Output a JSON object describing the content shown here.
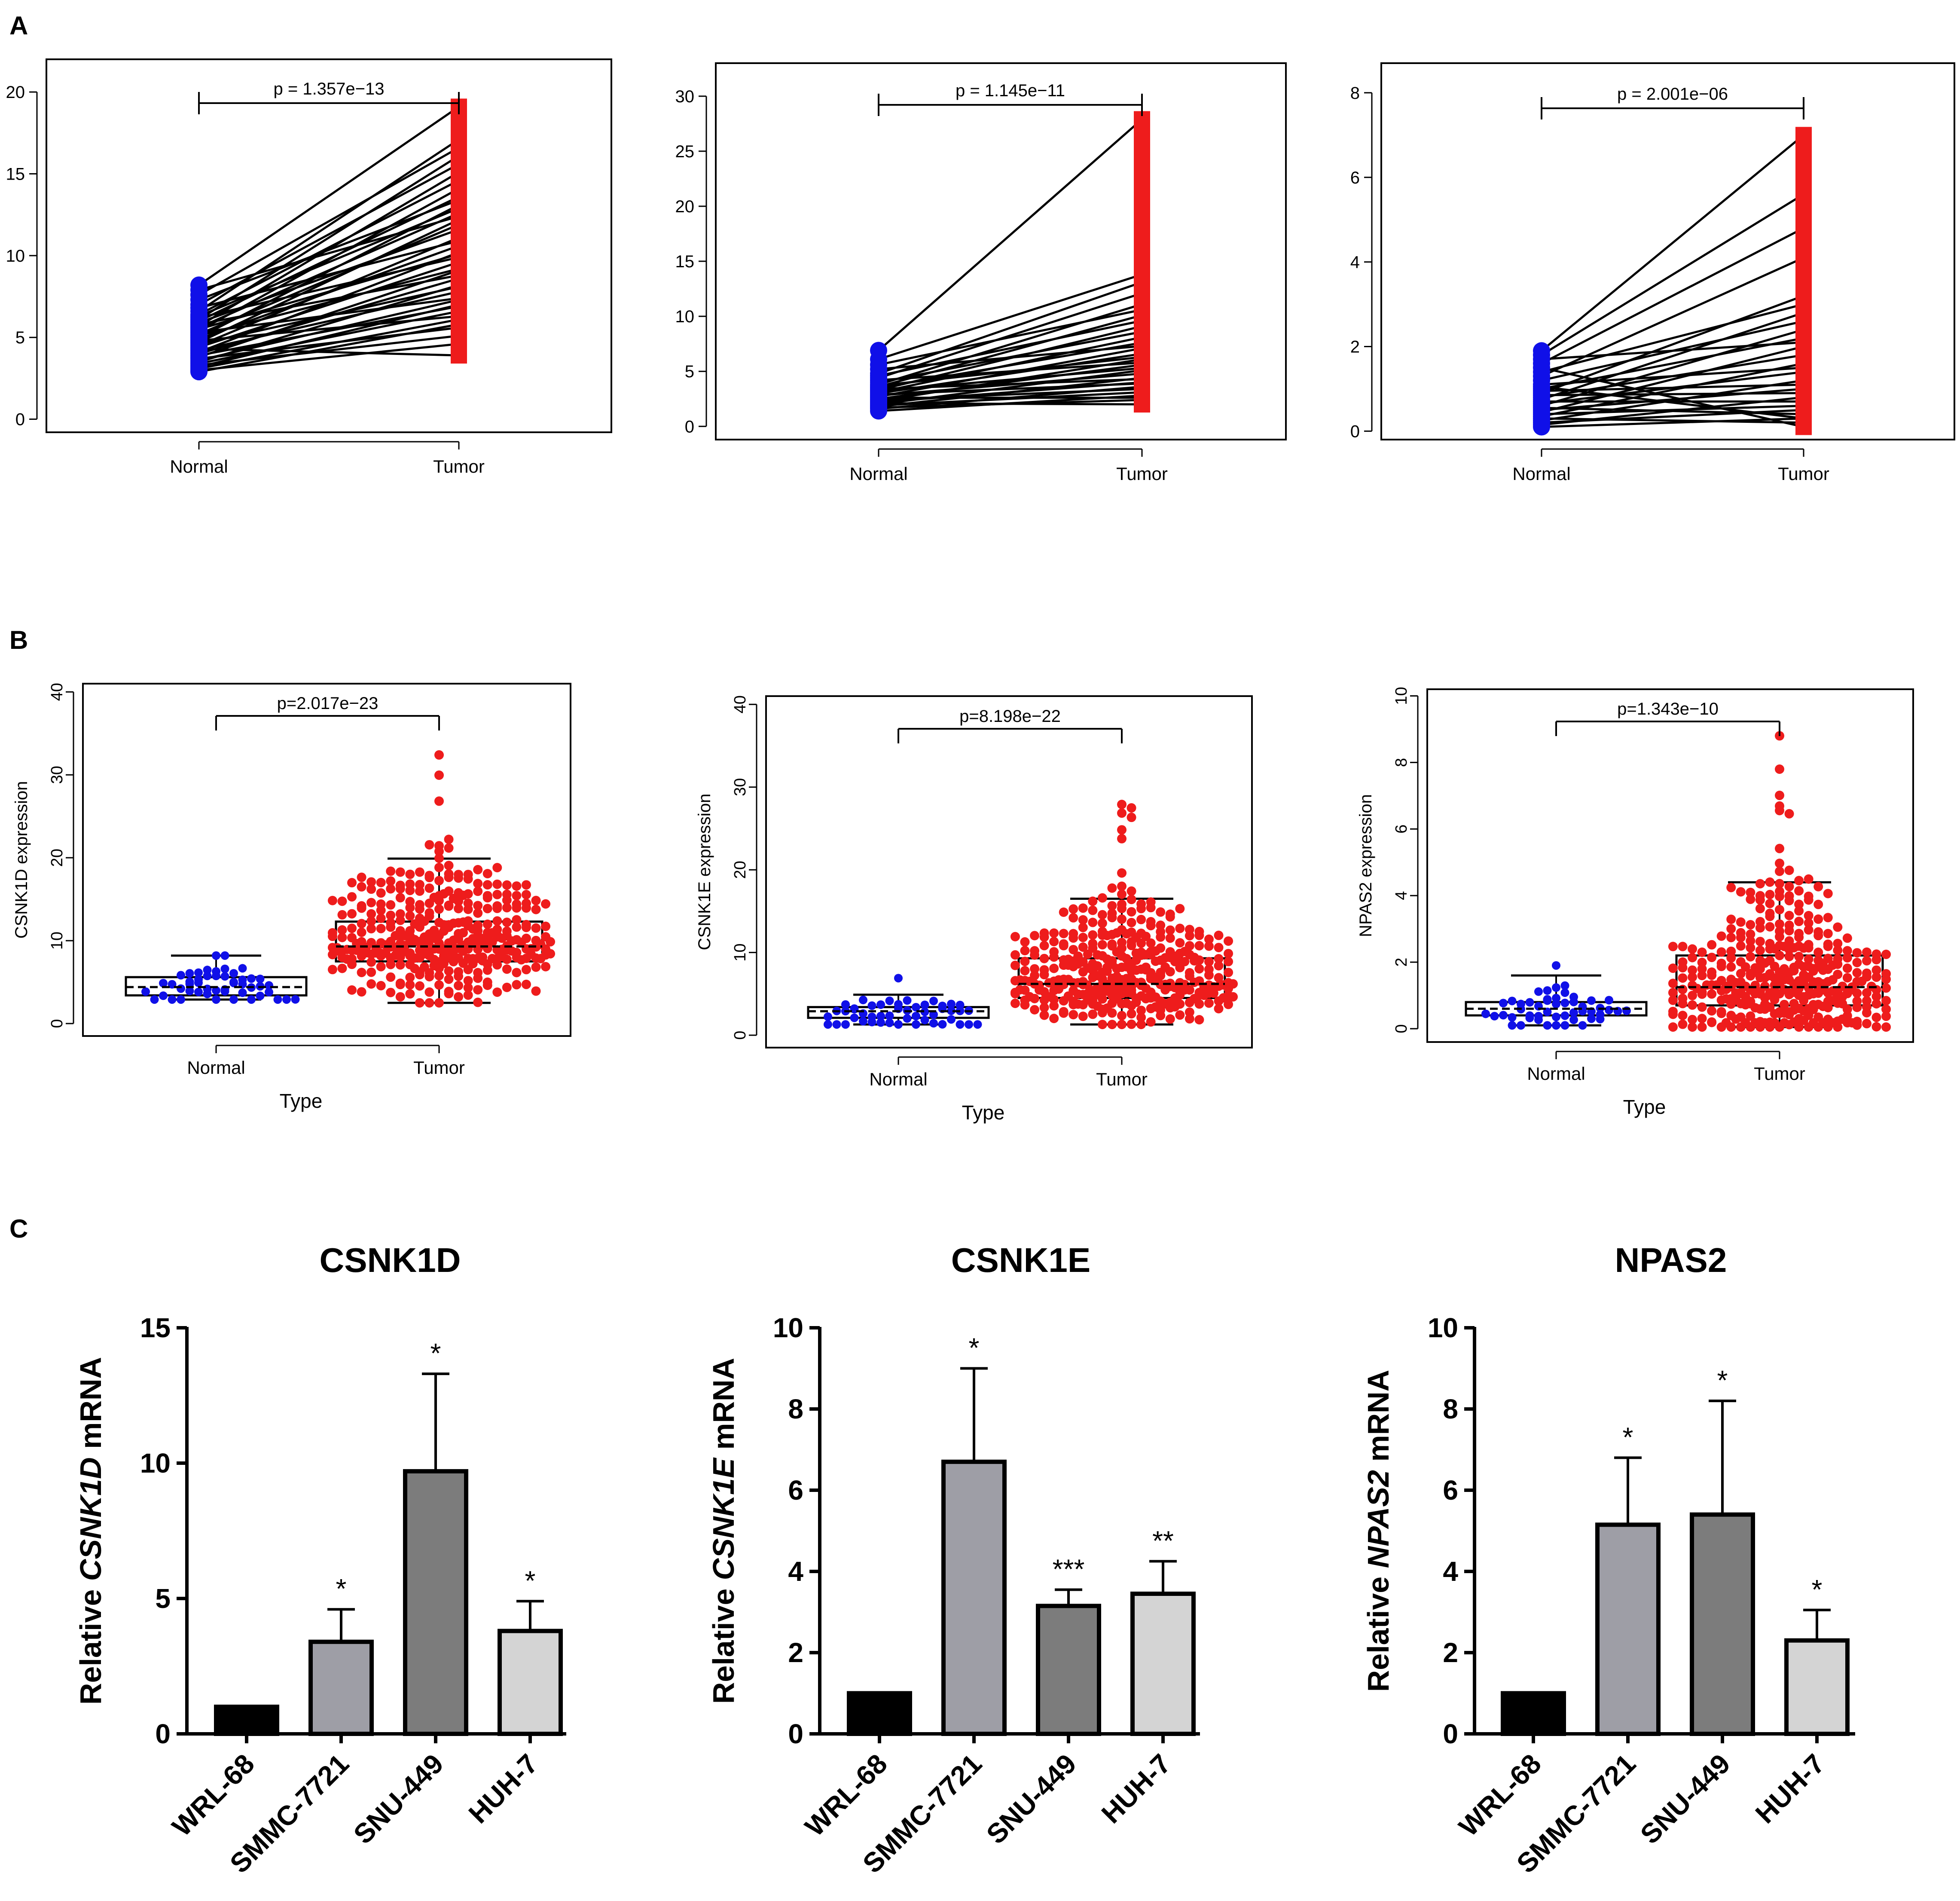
{
  "panels": {
    "A": "A",
    "B": "B",
    "C": "C"
  },
  "colors": {
    "normal": "#1010e8",
    "tumor": "#ee1c1c",
    "line": "#000000",
    "bar_black": "#000000",
    "bar_light_gray": "#9e9ea6",
    "bar_dark_gray": "#7c7c7c",
    "bar_pale_gray": "#d4d4d4"
  },
  "chart_data": [
    {
      "panel": "A",
      "type": "line",
      "subtype": "paired",
      "categories": [
        "Normal",
        "Tumor"
      ],
      "p_label": "p = 1.357e−13",
      "ylim": [
        -0.8,
        22
      ],
      "yticks": [
        0,
        5,
        10,
        15,
        20
      ],
      "ytick_labels": [
        "0",
        "5",
        "10",
        "15",
        "20"
      ],
      "normal_range": [
        2.9,
        8.2
      ],
      "tumor_range": [
        3.9,
        19.1
      ],
      "pairs": [
        [
          2.9,
          5.8
        ],
        [
          3.0,
          4.6
        ],
        [
          3.1,
          6.1
        ],
        [
          3.2,
          7.0
        ],
        [
          3.3,
          5.1
        ],
        [
          3.4,
          6.6
        ],
        [
          3.5,
          8.2
        ],
        [
          3.6,
          7.3
        ],
        [
          3.7,
          5.6
        ],
        [
          3.8,
          9.1
        ],
        [
          3.9,
          6.9
        ],
        [
          4.0,
          8.6
        ],
        [
          4.1,
          10.2
        ],
        [
          4.2,
          7.8
        ],
        [
          4.3,
          3.9
        ],
        [
          4.4,
          9.6
        ],
        [
          4.5,
          11.1
        ],
        [
          4.6,
          8.1
        ],
        [
          4.7,
          12.2
        ],
        [
          4.8,
          6.3
        ],
        [
          4.9,
          10.6
        ],
        [
          5.0,
          13.1
        ],
        [
          5.1,
          9.2
        ],
        [
          5.2,
          11.9
        ],
        [
          5.3,
          7.4
        ],
        [
          5.4,
          14.1
        ],
        [
          5.5,
          10.1
        ],
        [
          5.6,
          12.6
        ],
        [
          5.7,
          15.1
        ],
        [
          5.8,
          8.8
        ],
        [
          5.9,
          11.6
        ],
        [
          6.0,
          13.6
        ],
        [
          6.1,
          16.1
        ],
        [
          6.2,
          9.9
        ],
        [
          6.3,
          12.9
        ],
        [
          6.4,
          14.6
        ],
        [
          6.6,
          17.1
        ],
        [
          6.8,
          10.9
        ],
        [
          7.0,
          15.6
        ],
        [
          7.3,
          13.4
        ],
        [
          7.6,
          16.6
        ],
        [
          7.9,
          12.4
        ],
        [
          8.2,
          19.1
        ]
      ]
    },
    {
      "panel": "A",
      "type": "line",
      "subtype": "paired",
      "categories": [
        "Normal",
        "Tumor"
      ],
      "p_label": "p = 1.145e−11",
      "ylim": [
        -1.2,
        33
      ],
      "yticks": [
        0,
        5,
        10,
        15,
        20,
        25,
        30
      ],
      "ytick_labels": [
        "0",
        "5",
        "10",
        "15",
        "20",
        "25",
        "30"
      ],
      "normal_range": [
        1.4,
        6.9
      ],
      "tumor_range": [
        2.0,
        27.9
      ],
      "pairs": [
        [
          1.4,
          2.8
        ],
        [
          1.6,
          3.6
        ],
        [
          1.7,
          2.4
        ],
        [
          1.8,
          4.4
        ],
        [
          1.9,
          3.1
        ],
        [
          2.0,
          5.1
        ],
        [
          2.1,
          2.0
        ],
        [
          2.2,
          4.0
        ],
        [
          2.3,
          6.1
        ],
        [
          2.4,
          3.4
        ],
        [
          2.5,
          5.6
        ],
        [
          2.6,
          2.6
        ],
        [
          2.7,
          7.1
        ],
        [
          2.8,
          4.8
        ],
        [
          2.9,
          3.9
        ],
        [
          3.0,
          6.6
        ],
        [
          3.1,
          8.1
        ],
        [
          3.2,
          5.3
        ],
        [
          3.3,
          9.1
        ],
        [
          3.4,
          4.3
        ],
        [
          3.5,
          7.6
        ],
        [
          3.6,
          10.1
        ],
        [
          3.7,
          6.3
        ],
        [
          3.8,
          11.1
        ],
        [
          4.0,
          8.6
        ],
        [
          4.2,
          5.8
        ],
        [
          4.4,
          12.1
        ],
        [
          4.6,
          9.6
        ],
        [
          4.8,
          13.1
        ],
        [
          5.2,
          7.3
        ],
        [
          5.6,
          10.6
        ],
        [
          6.1,
          13.8
        ],
        [
          6.9,
          27.9
        ]
      ]
    },
    {
      "panel": "A",
      "type": "line",
      "subtype": "paired",
      "categories": [
        "Normal",
        "Tumor"
      ],
      "p_label": "p = 2.001e−06",
      "ylim": [
        -0.2,
        8.7
      ],
      "yticks": [
        0,
        2,
        4,
        6,
        8
      ],
      "ytick_labels": [
        "0",
        "2",
        "4",
        "6",
        "8"
      ],
      "normal_range": [
        0.1,
        1.9
      ],
      "tumor_range": [
        0.1,
        7.0
      ],
      "pairs": [
        [
          0.1,
          0.3
        ],
        [
          0.15,
          0.8
        ],
        [
          0.2,
          0.5
        ],
        [
          0.25,
          1.2
        ],
        [
          0.3,
          0.2
        ],
        [
          0.35,
          1.6
        ],
        [
          0.4,
          0.6
        ],
        [
          0.45,
          2.0
        ],
        [
          0.5,
          1.0
        ],
        [
          0.55,
          0.4
        ],
        [
          0.6,
          2.4
        ],
        [
          0.65,
          1.4
        ],
        [
          0.7,
          0.7
        ],
        [
          0.75,
          2.8
        ],
        [
          0.8,
          1.8
        ],
        [
          0.85,
          0.9
        ],
        [
          0.9,
          3.2
        ],
        [
          0.95,
          1.1
        ],
        [
          1.0,
          2.2
        ],
        [
          1.05,
          0.3
        ],
        [
          1.1,
          1.5
        ],
        [
          1.2,
          2.6
        ],
        [
          1.3,
          4.1
        ],
        [
          1.4,
          3.0
        ],
        [
          1.5,
          0.1
        ],
        [
          1.6,
          4.8
        ],
        [
          1.7,
          2.1
        ],
        [
          1.8,
          5.6
        ],
        [
          1.9,
          7.0
        ]
      ]
    },
    {
      "panel": "B",
      "type": "scatter",
      "subtype": "beeswarm-boxplot",
      "categories": [
        "Normal",
        "Tumor"
      ],
      "xlabel": "Type",
      "ylabel": "CSNK1D expression",
      "p_label": "p=2.017e−23",
      "ylim": [
        -1.5,
        41
      ],
      "yticks": [
        0,
        10,
        20,
        30,
        40
      ],
      "ytick_labels": [
        "0",
        "10",
        "20",
        "30",
        "40"
      ],
      "groups": [
        {
          "name": "Normal",
          "n": 50,
          "min": 2.9,
          "q1": 3.4,
          "median": 4.4,
          "q3": 5.6,
          "max": 8.2,
          "whisker_low": 2.9,
          "whisker_high": 8.2
        },
        {
          "name": "Tumor",
          "n": 371,
          "min": 2.5,
          "q1": 7.5,
          "median": 9.3,
          "q3": 12.3,
          "max": 32.4,
          "whisker_low": 2.5,
          "whisker_high": 19.9
        }
      ]
    },
    {
      "panel": "B",
      "type": "scatter",
      "subtype": "beeswarm-boxplot",
      "categories": [
        "Normal",
        "Tumor"
      ],
      "xlabel": "Type",
      "ylabel": "CSNK1E expression",
      "p_label": "p=8.198e−22",
      "ylim": [
        -1.5,
        41
      ],
      "yticks": [
        0,
        10,
        20,
        30,
        40
      ],
      "ytick_labels": [
        "0",
        "10",
        "20",
        "30",
        "40"
      ],
      "groups": [
        {
          "name": "Normal",
          "n": 50,
          "min": 1.3,
          "q1": 2.1,
          "median": 2.9,
          "q3": 3.4,
          "max": 6.9,
          "whisker_low": 1.3,
          "whisker_high": 4.9
        },
        {
          "name": "Tumor",
          "n": 371,
          "min": 1.3,
          "q1": 4.5,
          "median": 6.2,
          "q3": 9.3,
          "max": 27.9,
          "whisker_low": 1.3,
          "whisker_high": 16.5
        }
      ]
    },
    {
      "panel": "B",
      "type": "scatter",
      "subtype": "beeswarm-boxplot",
      "categories": [
        "Normal",
        "Tumor"
      ],
      "xlabel": "Type",
      "ylabel": "NPAS2 expression",
      "p_label": "p=1.343e−10",
      "ylim": [
        -0.4,
        10.2
      ],
      "yticks": [
        0,
        2,
        4,
        6,
        8,
        10
      ],
      "ytick_labels": [
        "0",
        "2",
        "4",
        "6",
        "8",
        "10"
      ],
      "groups": [
        {
          "name": "Normal",
          "n": 50,
          "min": 0.1,
          "q1": 0.4,
          "median": 0.6,
          "q3": 0.8,
          "max": 1.9,
          "whisker_low": 0.1,
          "whisker_high": 1.6
        },
        {
          "name": "Tumor",
          "n": 371,
          "min": 0.05,
          "q1": 0.7,
          "median": 1.25,
          "q3": 2.2,
          "max": 8.8,
          "whisker_low": 0.05,
          "whisker_high": 4.4
        }
      ]
    },
    {
      "panel": "C",
      "type": "bar",
      "title": "CSNK1D",
      "ylabel_prefix": "Relative ",
      "ylabel_gene": "CSNK1D",
      "ylabel_suffix": " mRNA",
      "categories": [
        "WRL-68",
        "SMMC-7721",
        "SNU-449",
        "HUH-7"
      ],
      "values": [
        1.0,
        3.4,
        9.7,
        3.8
      ],
      "errors": [
        0,
        1.2,
        3.6,
        1.1
      ],
      "significance": [
        "",
        "*",
        "*",
        "*"
      ],
      "ylim": [
        0,
        15
      ],
      "yticks": [
        0,
        5,
        10,
        15
      ],
      "ytick_labels": [
        "0",
        "5",
        "10",
        "15"
      ]
    },
    {
      "panel": "C",
      "type": "bar",
      "title": "CSNK1E",
      "ylabel_prefix": "Relative ",
      "ylabel_gene": "CSNK1E",
      "ylabel_suffix": " mRNA",
      "categories": [
        "WRL-68",
        "SMMC-7721",
        "SNU-449",
        "HUH-7"
      ],
      "values": [
        1.0,
        6.7,
        3.15,
        3.45
      ],
      "errors": [
        0,
        2.3,
        0.4,
        0.8
      ],
      "significance": [
        "",
        "*",
        "***",
        "**"
      ],
      "ylim": [
        0,
        10
      ],
      "yticks": [
        0,
        2,
        4,
        6,
        8,
        10
      ],
      "ytick_labels": [
        "0",
        "2",
        "4",
        "6",
        "8",
        "10"
      ]
    },
    {
      "panel": "C",
      "type": "bar",
      "title": "NPAS2",
      "ylabel_prefix": "Relative ",
      "ylabel_gene": "NPAS2",
      "ylabel_suffix": " mRNA",
      "categories": [
        "WRL-68",
        "SMMC-7721",
        "SNU-449",
        "HUH-7"
      ],
      "values": [
        1.0,
        5.15,
        5.4,
        2.3
      ],
      "errors": [
        0,
        1.65,
        2.8,
        0.75
      ],
      "significance": [
        "",
        "*",
        "*",
        "*"
      ],
      "ylim": [
        0,
        10
      ],
      "yticks": [
        0,
        2,
        4,
        6,
        8,
        10
      ],
      "ytick_labels": [
        "0",
        "2",
        "4",
        "6",
        "8",
        "10"
      ]
    }
  ]
}
